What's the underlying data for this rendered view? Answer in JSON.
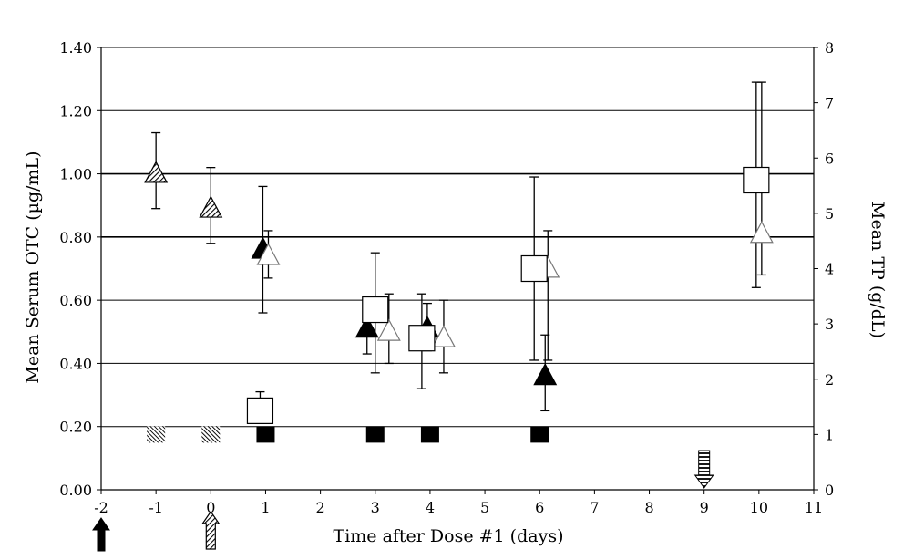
{
  "chart_data": {
    "type": "scatter",
    "title": "",
    "xlabel": "Time after Dose #1 (days)",
    "ylabel_left": "Mean Serum OTC (µg/mL)",
    "ylabel_right": "Mean TP (g/dL)",
    "xlim": [
      -2,
      11
    ],
    "ylim_left": [
      0,
      1.4
    ],
    "ylim_right": [
      0,
      8
    ],
    "x_ticks": [
      "-2",
      "-1",
      "0",
      "1",
      "2",
      "3",
      "4",
      "5",
      "6",
      "7",
      "8",
      "9",
      "10",
      "11"
    ],
    "y_left_ticks": [
      "0.00",
      "0.20",
      "0.40",
      "0.60",
      "0.80",
      "1.00",
      "1.20",
      "1.40"
    ],
    "y_right_ticks": [
      "0",
      "1",
      "2",
      "3",
      "4",
      "5",
      "6",
      "7",
      "8"
    ],
    "grid": "horizontal",
    "series": [
      {
        "marker": "hatched-triangle",
        "axis": "left",
        "points": [
          {
            "x": -1,
            "y": 1.0,
            "err_low": 0.89,
            "err_high": 1.13
          },
          {
            "x": 0,
            "y": 0.89,
            "err_low": 0.78,
            "err_high": 1.02
          }
        ]
      },
      {
        "marker": "filled-triangle",
        "axis": "left",
        "points": [
          {
            "x": 0.95,
            "y": 0.76,
            "err_low": 0.56,
            "err_high": 0.96
          },
          {
            "x": 2.85,
            "y": 0.51,
            "err_low": 0.43,
            "err_high": 0.61
          },
          {
            "x": 3.95,
            "y": 0.51,
            "err_low": 0.44,
            "err_high": 0.59
          },
          {
            "x": 6.1,
            "y": 0.36,
            "err_low": 0.25,
            "err_high": 0.49
          }
        ]
      },
      {
        "marker": "open-triangle",
        "axis": "left",
        "points": [
          {
            "x": 1.05,
            "y": 0.74,
            "err_low": 0.67,
            "err_high": 0.82
          },
          {
            "x": 3.25,
            "y": 0.5,
            "err_low": 0.4,
            "err_high": 0.62
          },
          {
            "x": 4.25,
            "y": 0.48,
            "err_low": 0.37,
            "err_high": 0.6
          },
          {
            "x": 6.15,
            "y": 0.7,
            "err_low": 0.41,
            "err_high": 0.82
          },
          {
            "x": 10.05,
            "y": 0.81,
            "err_low": 0.68,
            "err_high": 1.29
          }
        ]
      },
      {
        "marker": "open-square",
        "axis": "left",
        "points": [
          {
            "x": 0.9,
            "y": 0.25,
            "err_low": 0.21,
            "err_high": 0.31
          },
          {
            "x": 3.0,
            "y": 0.57,
            "err_low": 0.37,
            "err_high": 0.75
          },
          {
            "x": 3.85,
            "y": 0.48,
            "err_low": 0.32,
            "err_high": 0.62
          },
          {
            "x": 5.9,
            "y": 0.7,
            "err_low": 0.41,
            "err_high": 0.99
          },
          {
            "x": 9.95,
            "y": 0.98,
            "err_low": 0.64,
            "err_high": 1.29
          }
        ]
      },
      {
        "marker": "hatched-square",
        "axis": "right",
        "points": [
          {
            "x": -1,
            "y": 1.0
          },
          {
            "x": 0,
            "y": 1.0
          }
        ]
      },
      {
        "marker": "filled-square",
        "axis": "right",
        "points": [
          {
            "x": 1,
            "y": 1.0
          },
          {
            "x": 3,
            "y": 1.0
          },
          {
            "x": 4,
            "y": 1.0
          },
          {
            "x": 6,
            "y": 1.0
          }
        ]
      }
    ],
    "arrows": [
      {
        "x": -2,
        "style": "filled-up"
      },
      {
        "x": 0,
        "style": "hatched-up"
      },
      {
        "x": 9,
        "style": "striped-down"
      }
    ]
  }
}
